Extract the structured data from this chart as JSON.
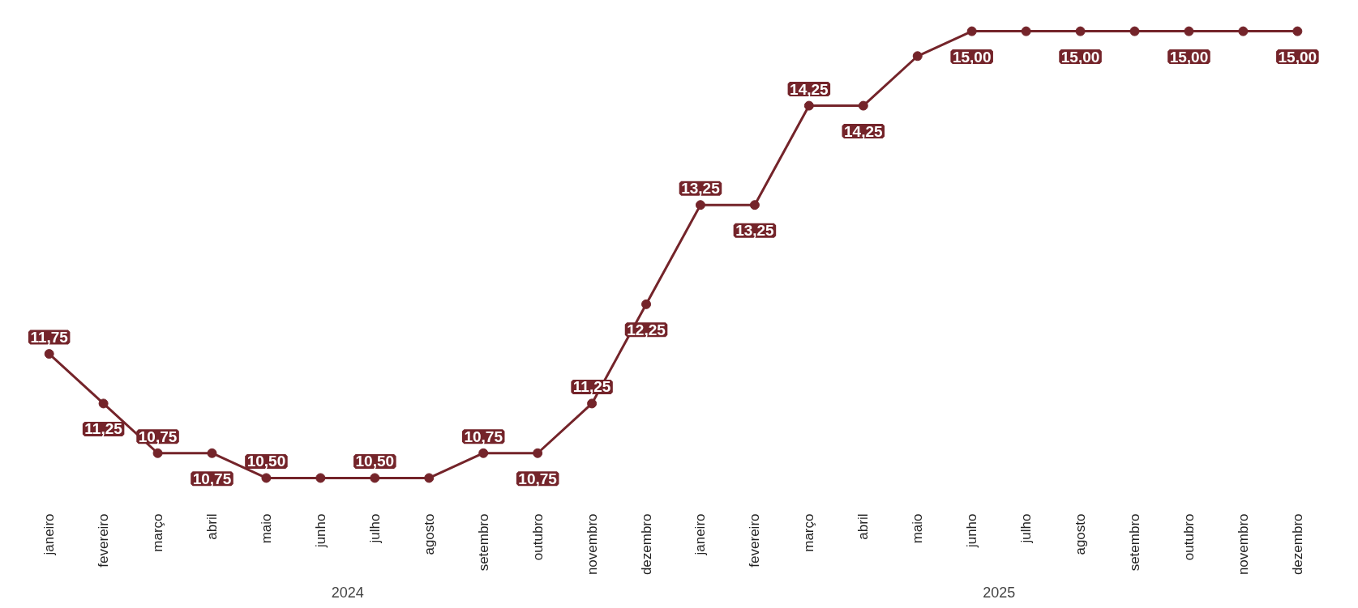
{
  "chart_data": {
    "type": "line",
    "categories": [
      "janeiro",
      "fevereiro",
      "março",
      "abril",
      "maio",
      "junho",
      "julho",
      "agosto",
      "setembro",
      "outubro",
      "novembro",
      "dezembro",
      "janeiro",
      "fevereiro",
      "março",
      "abril",
      "maio",
      "junho",
      "julho",
      "agosto",
      "setembro",
      "outubro",
      "novembro",
      "dezembro"
    ],
    "series": [
      {
        "color": "#74242a",
        "values": [
          11.75,
          11.25,
          10.75,
          10.75,
          10.5,
          10.5,
          10.5,
          10.5,
          10.75,
          10.75,
          11.25,
          12.25,
          13.25,
          13.25,
          14.25,
          14.25,
          14.75,
          15,
          15,
          15,
          15,
          15,
          15,
          15
        ],
        "value_labels": [
          "11,75",
          "11,25",
          "10,75",
          "10,75",
          "10,50",
          null,
          "10,50",
          null,
          "10,75",
          "10,75",
          "11,25",
          "12,25",
          "13,25",
          "13,25",
          "14,25",
          "14,25",
          null,
          "15,00",
          null,
          "15,00",
          null,
          "15,00",
          null,
          "15,00"
        ]
      }
    ],
    "annotations": [
      "2024",
      "2025"
    ],
    "tick_labels": "x",
    "grid": false,
    "marker": "circle",
    "line_style": "solid"
  }
}
